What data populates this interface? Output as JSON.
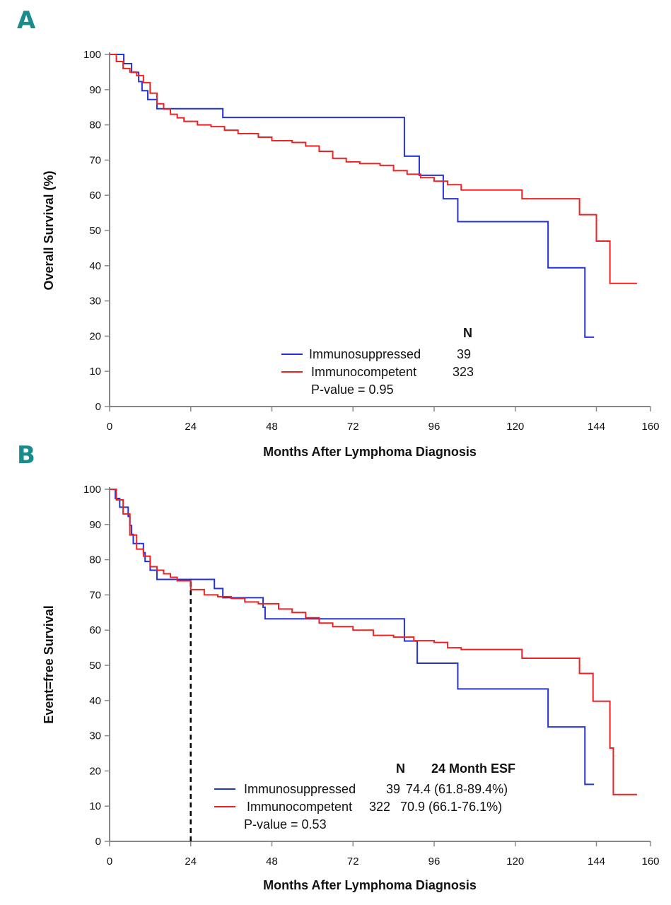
{
  "chart_data": [
    {
      "type": "line",
      "panel_label": "A",
      "xlabel": "Months After Lymphoma Diagnosis",
      "ylabel": "Overall Survival (%)",
      "xlim": [
        0,
        160
      ],
      "ylim": [
        0,
        100
      ],
      "xticks": [
        0,
        24,
        48,
        72,
        96,
        120,
        144,
        160
      ],
      "yticks": [
        0,
        10,
        20,
        30,
        40,
        50,
        60,
        70,
        80,
        90,
        100
      ],
      "legend": {
        "header": [
          "N"
        ],
        "entries": [
          {
            "label": "Immunosuppressed",
            "n": "39",
            "color": "#2233dd"
          },
          {
            "label": "Immunocompetent",
            "n": "323",
            "color": "#ee2222"
          }
        ],
        "pvalue": "P-value = 0.95"
      },
      "series": [
        {
          "name": "Immunosuppressed",
          "color": "#2233dd",
          "step": true,
          "x": [
            0,
            4.2,
            6.5,
            8.6,
            9.6,
            11.3,
            14,
            33.5,
            87.2,
            91.6,
            98.7,
            103,
            129.7,
            140.6,
            143.3
          ],
          "y": [
            100,
            97.4,
            94.9,
            92.3,
            89.7,
            87.2,
            84.6,
            82.1,
            71.1,
            65.7,
            59,
            52.5,
            39.4,
            19.7,
            19.7
          ]
        },
        {
          "name": "Immunocompetent",
          "color": "#ee2222",
          "step": true,
          "x": [
            0,
            2,
            4,
            6,
            8,
            10,
            12,
            14,
            16,
            18,
            20,
            22,
            26,
            30,
            34,
            38,
            44,
            48,
            54,
            58,
            62,
            66,
            70,
            74,
            80,
            84,
            88,
            92,
            96,
            100,
            104,
            122,
            139,
            144,
            148,
            156
          ],
          "y": [
            100,
            98,
            96,
            95,
            94,
            92,
            89,
            86,
            84.5,
            83,
            82,
            81,
            80,
            79.5,
            78.5,
            77.5,
            76.5,
            75.5,
            75,
            74,
            72.5,
            70.5,
            69.5,
            69,
            68.5,
            67,
            66,
            65,
            64,
            63,
            61.5,
            59,
            54.5,
            47,
            35,
            35
          ]
        }
      ]
    },
    {
      "type": "line",
      "panel_label": "B",
      "xlabel": "Months After Lymphoma Diagnosis",
      "ylabel": "Event=free Survival",
      "xlim": [
        0,
        160
      ],
      "ylim": [
        0,
        100
      ],
      "xticks": [
        0,
        24,
        48,
        72,
        96,
        120,
        144,
        160
      ],
      "yticks": [
        0,
        10,
        20,
        30,
        40,
        50,
        60,
        70,
        80,
        90,
        100
      ],
      "legend": {
        "header": [
          "N",
          "24 Month ESF"
        ],
        "entries": [
          {
            "label": "Immunosuppressed",
            "n": "39",
            "esf": "74.4 (61.8-89.4%)",
            "color": "#2233dd"
          },
          {
            "label": "Immunocompetent",
            "n": "322",
            "esf": "70.9 (66.1-76.1%)",
            "color": "#ee2222"
          }
        ],
        "pvalue": "P-value = 0.53"
      },
      "reference_line": {
        "x": 24,
        "y": [
          0,
          74.4
        ],
        "style": "dashed",
        "color": "#000000"
      },
      "series": [
        {
          "name": "Immunosuppressed",
          "color": "#2233dd",
          "step": true,
          "x": [
            0,
            1.7,
            3,
            5.5,
            6,
            6.5,
            7,
            10,
            10.5,
            12,
            14,
            31,
            33.5,
            45.4,
            46,
            87.2,
            88,
            91,
            103,
            129.7,
            140.6,
            143.3
          ],
          "y": [
            100,
            97.4,
            94.9,
            92.3,
            89.7,
            87.2,
            84.6,
            82,
            79.5,
            77,
            74.4,
            71.8,
            69.2,
            66.5,
            63.2,
            56.9,
            56.9,
            50.6,
            43.3,
            32.5,
            16.2,
            16.2
          ]
        },
        {
          "name": "Immunocompetent",
          "color": "#ee2222",
          "step": true,
          "x": [
            0,
            2,
            4,
            6,
            8,
            10,
            12,
            14,
            16,
            18,
            20,
            24,
            28,
            32,
            36,
            40,
            44,
            50,
            54,
            58,
            62,
            66,
            72,
            78,
            84,
            90,
            96,
            100,
            104,
            122,
            139,
            143,
            148,
            149,
            156
          ],
          "y": [
            100,
            97,
            93,
            87,
            83,
            81,
            78,
            77,
            76,
            75,
            74,
            71.5,
            70,
            69.5,
            69,
            68,
            67.5,
            66,
            65,
            63.5,
            62,
            61,
            60,
            58.5,
            58,
            57,
            56.5,
            55,
            54.5,
            52,
            47.7,
            39.8,
            26.5,
            13.3,
            13.3
          ]
        }
      ]
    }
  ]
}
